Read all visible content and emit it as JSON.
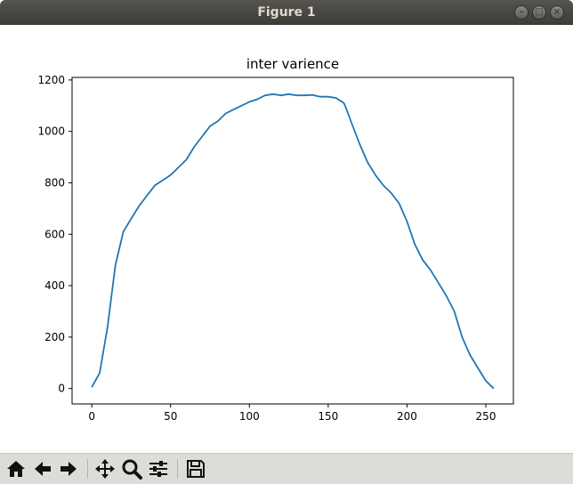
{
  "window": {
    "title": "Figure 1"
  },
  "toolbar": {
    "buttons": [
      {
        "name": "home-icon"
      },
      {
        "name": "back-arrow-icon"
      },
      {
        "name": "forward-arrow-icon"
      },
      {
        "name": "pan-icon"
      },
      {
        "name": "zoom-icon"
      },
      {
        "name": "configure-subplots-icon"
      },
      {
        "name": "save-icon"
      }
    ]
  },
  "chart_data": {
    "type": "line",
    "title": "inter varience",
    "xlabel": "",
    "ylabel": "",
    "xlim": [
      -12.5,
      267.5
    ],
    "ylim": [
      -60,
      1210
    ],
    "xticks": [
      0,
      50,
      100,
      150,
      200,
      250
    ],
    "yticks": [
      0,
      200,
      400,
      600,
      800,
      1000,
      1200
    ],
    "grid": false,
    "color": "#1f77b4",
    "series": [
      {
        "x": [
          0,
          5,
          10,
          15,
          20,
          25,
          30,
          35,
          40,
          45,
          50,
          55,
          60,
          65,
          70,
          75,
          80,
          85,
          90,
          95,
          100,
          105,
          110,
          115,
          120,
          125,
          130,
          135,
          140,
          145,
          150,
          155,
          160,
          162,
          165,
          170,
          175,
          180,
          185,
          190,
          195,
          200,
          205,
          210,
          215,
          220,
          225,
          230,
          235,
          240,
          245,
          250,
          255
        ],
        "y": [
          5,
          60,
          240,
          480,
          610,
          660,
          710,
          750,
          790,
          810,
          830,
          860,
          890,
          940,
          980,
          1020,
          1040,
          1070,
          1085,
          1100,
          1115,
          1125,
          1140,
          1145,
          1140,
          1145,
          1140,
          1140,
          1142,
          1135,
          1135,
          1130,
          1110,
          1080,
          1030,
          950,
          880,
          830,
          790,
          760,
          720,
          650,
          560,
          500,
          460,
          410,
          360,
          300,
          200,
          130,
          80,
          30,
          0
        ]
      }
    ]
  }
}
